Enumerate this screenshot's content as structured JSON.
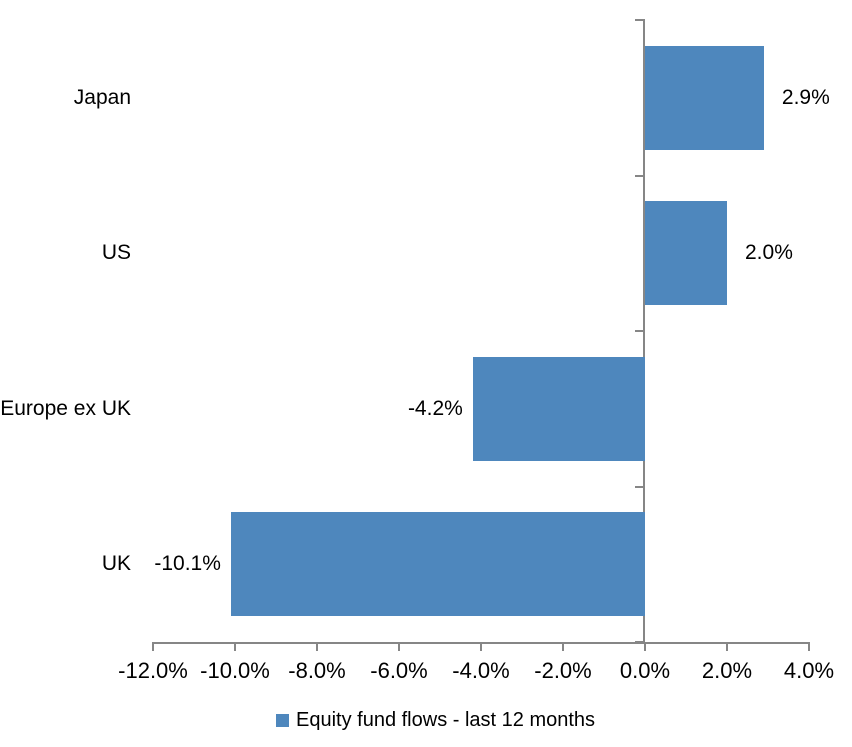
{
  "chart_data": {
    "type": "bar",
    "orientation": "horizontal",
    "title": "",
    "xlabel": "",
    "ylabel": "",
    "categories": [
      "Japan",
      "US",
      "Europe ex UK",
      "UK"
    ],
    "series": [
      {
        "name": "Equity fund flows - last 12 months",
        "values": [
          2.9,
          2.0,
          -4.2,
          -10.1
        ],
        "data_labels": [
          "2.9%",
          "2.0%",
          "-4.2%",
          "-10.1%"
        ]
      }
    ],
    "xlim": [
      -12,
      4
    ],
    "x_ticks": [
      -12,
      -10,
      -8,
      -6,
      -4,
      -2,
      0,
      2,
      4
    ],
    "x_tick_labels": [
      "-12.0%",
      "-10.0%",
      "-8.0%",
      "-6.0%",
      "-4.0%",
      "-2.0%",
      "0.0%",
      "2.0%",
      "4.0%"
    ],
    "grid": false,
    "legend_position": "bottom",
    "colors": {
      "bar": "#4E87BD",
      "axis": "#868686",
      "text": "#000000",
      "background": "#FFFFFF"
    }
  },
  "legend": {
    "label": "Equity fund flows - last 12 months"
  }
}
